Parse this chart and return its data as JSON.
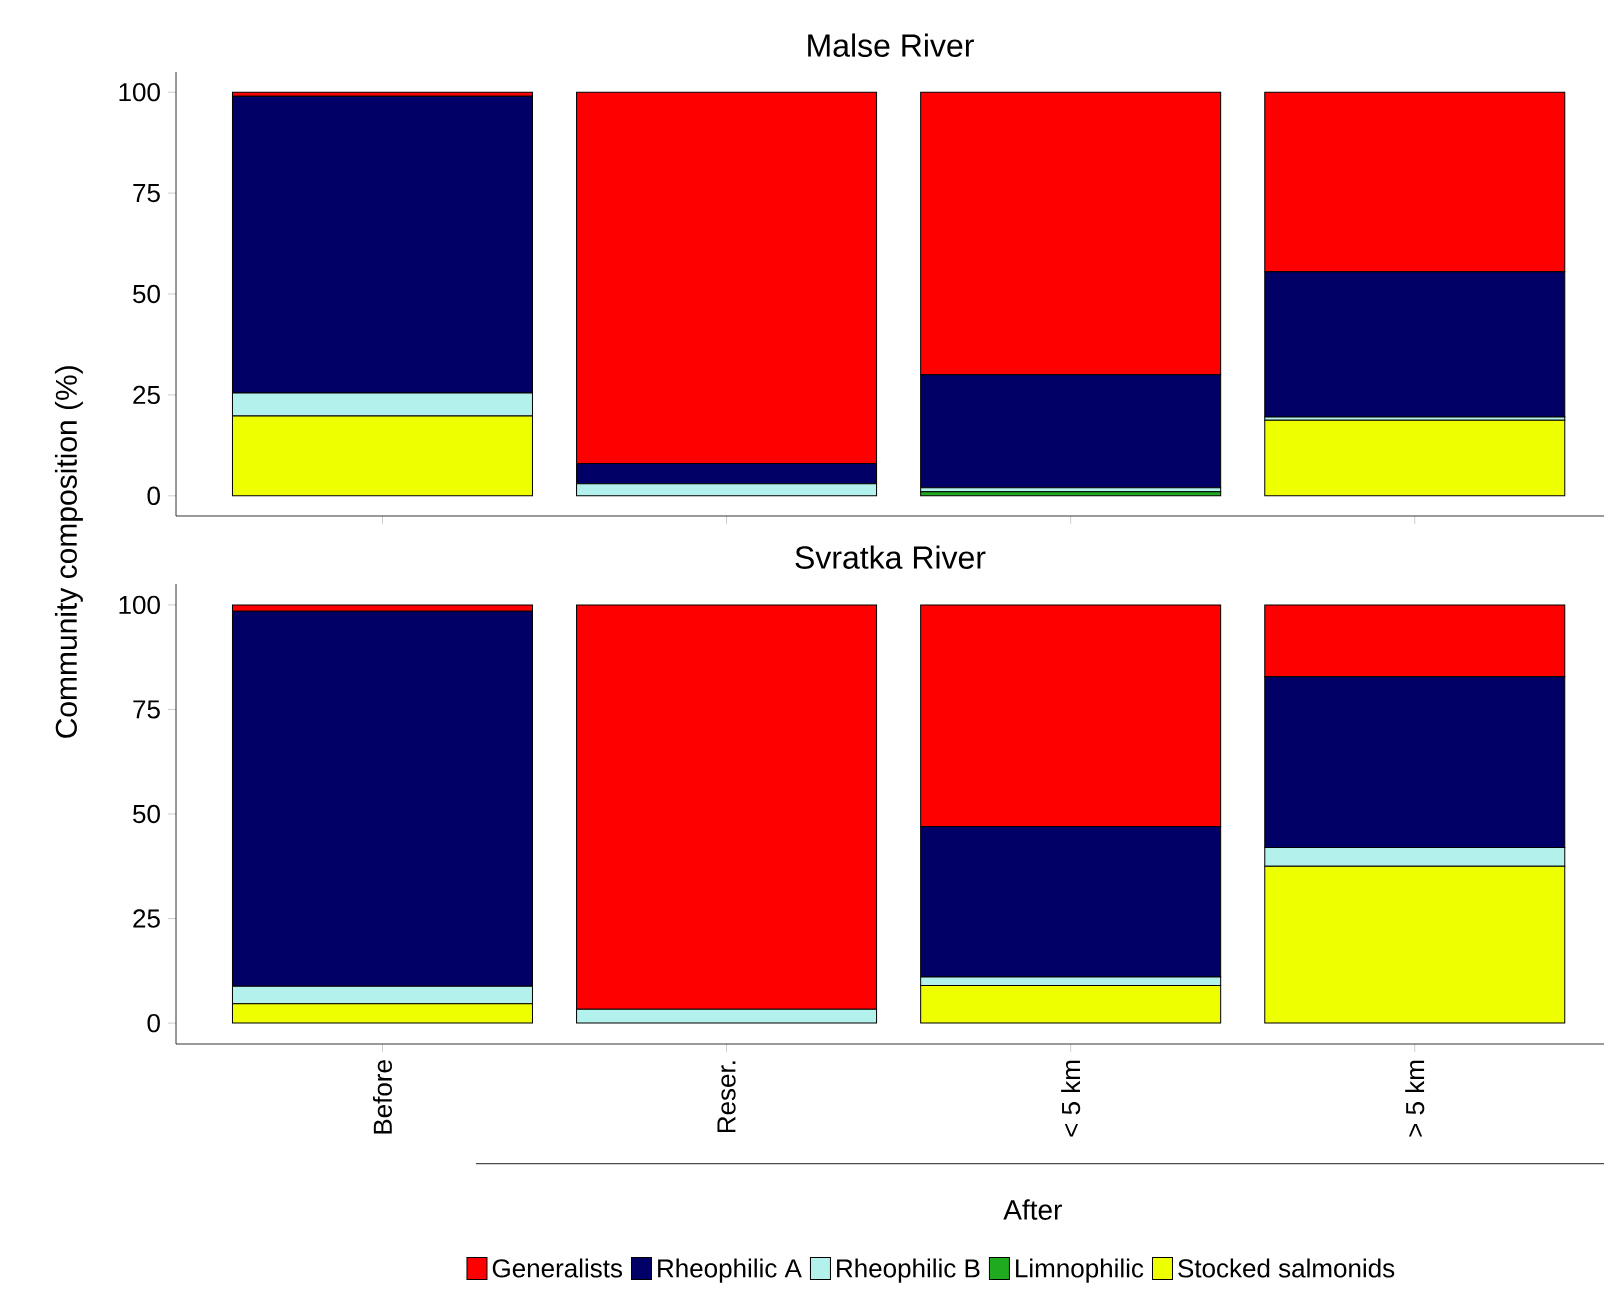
{
  "chart_data": [
    {
      "type": "bar",
      "title": "Malse River",
      "stacked": true,
      "categories": [
        null,
        null,
        null,
        null
      ],
      "ylim": [
        -5,
        105
      ],
      "yticks": [
        0,
        25,
        50,
        75,
        100
      ],
      "tick_labels": "y",
      "series": [
        {
          "color": "#eeff00",
          "values": [
            19.8,
            0,
            0,
            18.7
          ]
        },
        {
          "color": "#1faa1f",
          "values": [
            0,
            0,
            1,
            0
          ]
        },
        {
          "color": "#b3f2ec",
          "values": [
            5.7,
            3,
            1,
            0.8
          ]
        },
        {
          "color": "#000066",
          "values": [
            73.5,
            5,
            28,
            36
          ]
        },
        {
          "color": "#ff0000",
          "values": [
            1,
            92,
            70,
            44.5
          ]
        }
      ]
    },
    {
      "type": "bar",
      "title": "Svratka River",
      "stacked": true,
      "categories": [
        "Before",
        "Reser.",
        "< 5 km",
        "> 5 km"
      ],
      "ylim": [
        -5,
        105
      ],
      "yticks": [
        0,
        25,
        50,
        75,
        100
      ],
      "ylabel": "Community composition (%)",
      "legend": "bottom",
      "annotations": [
        "After"
      ],
      "series": [
        {
          "name": "Stocked salmonids",
          "color": "#eeff00",
          "values": [
            4.6,
            0,
            9,
            37.5
          ]
        },
        {
          "name": "Limnophilic",
          "color": "#1faa1f",
          "values": [
            0,
            0,
            0,
            0
          ]
        },
        {
          "name": "Rheophilic B",
          "color": "#b3f2ec",
          "values": [
            4.2,
            3.3,
            2,
            4.5
          ]
        },
        {
          "name": "Rheophilic A",
          "color": "#000066",
          "values": [
            89.7,
            0,
            36,
            40.8
          ]
        },
        {
          "name": "Generalists",
          "color": "#ff0000",
          "values": [
            1.5,
            96.7,
            53,
            17.2
          ]
        }
      ]
    }
  ]
}
